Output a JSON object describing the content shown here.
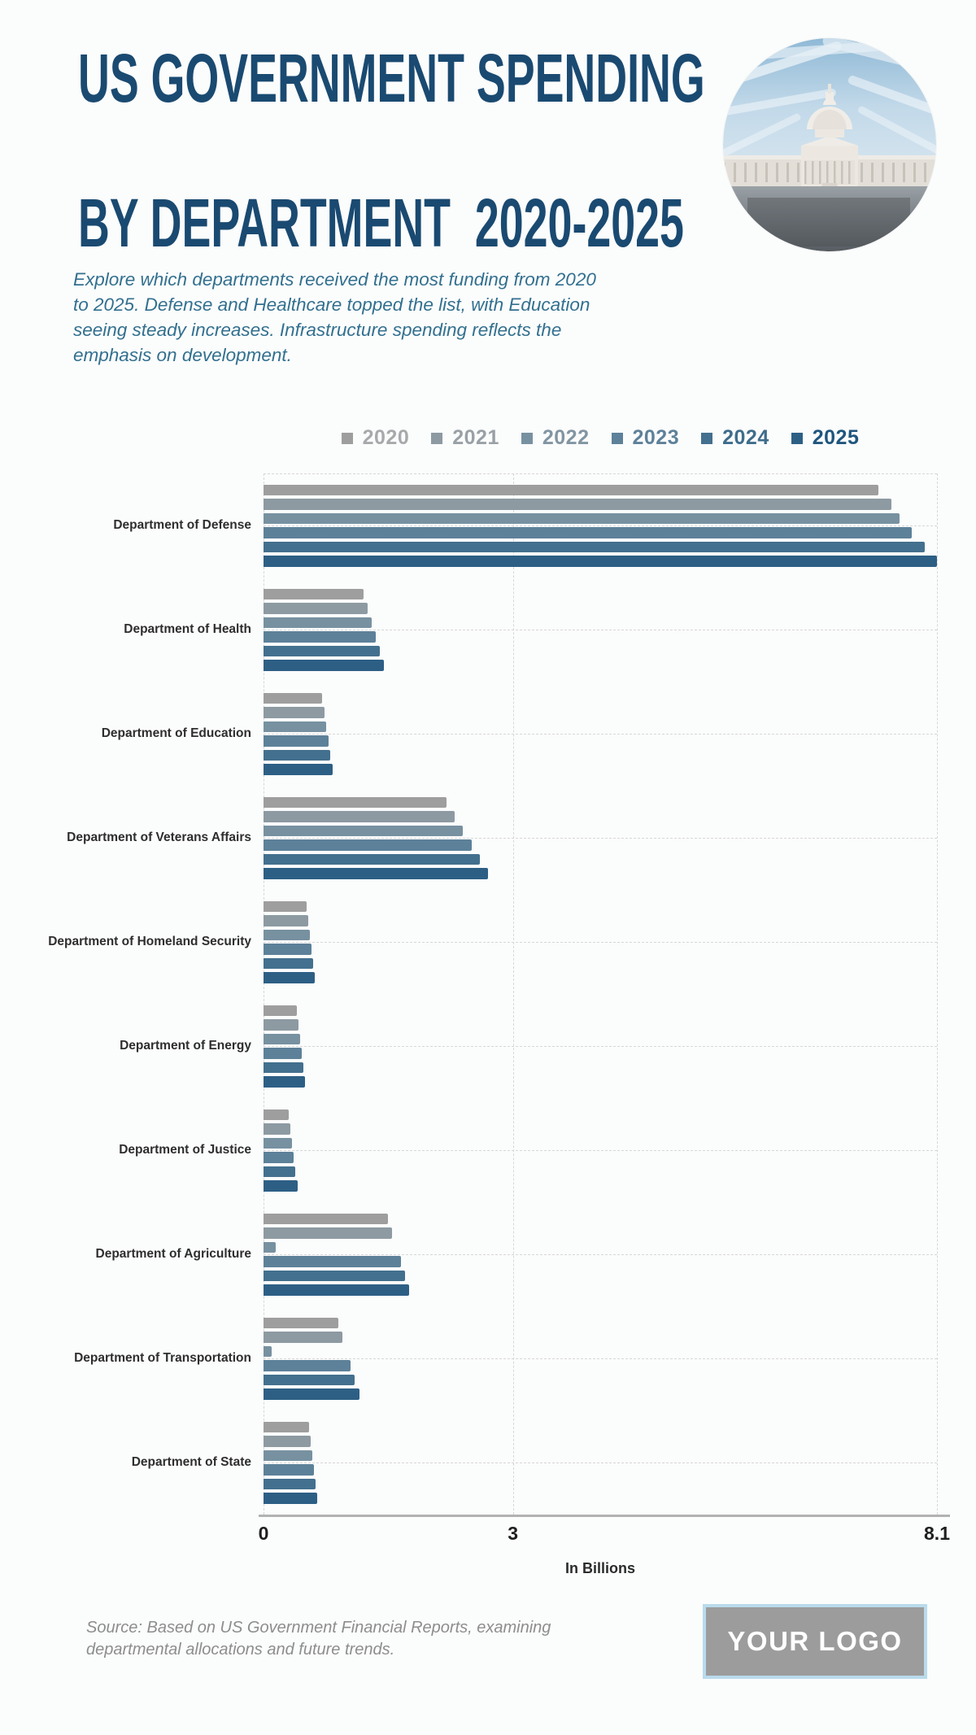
{
  "page": {
    "title_line1": "US GOVERNMENT SPENDING",
    "title_line2": "BY DEPARTMENT  2020-2025",
    "intro_lines": [
      "Explore which departments received the most funding from 2020",
      "to 2025. Defense and Healthcare topped the list, with Education",
      "seeing steady increases. Infrastructure spending reflects the",
      "emphasis on development."
    ],
    "source_lines": [
      "Source: Based on US Government Financial Reports, examining",
      "departmental allocations and future trends."
    ],
    "logo_text": "YOUR LOGO",
    "hero_image": "us-capitol-building-photo"
  },
  "colors": {
    "title_navy": "#1a4a71",
    "intro_blue": "#32708f",
    "axis_line": "#b2b2b2",
    "gridline": "#d7d7d7",
    "logo_border_blue": "#b9dbec",
    "logo_gray": "#9c9c9c"
  },
  "chart_data": {
    "type": "bar",
    "orientation": "horizontal",
    "title": "",
    "xlabel": "In Billions",
    "ylabel": "",
    "xlim": [
      0,
      8.1
    ],
    "x_ticks": [
      "0",
      "3",
      "8.1"
    ],
    "x_tick_values": [
      0,
      3,
      8.1
    ],
    "grid": true,
    "legend_position": "top",
    "categories": [
      "Department of Defense",
      "Department of Health",
      "Department of Education",
      "Department of Veterans Affairs",
      "Department of Homeland Security",
      "Department of Energy",
      "Department of Justice",
      "Department of Agriculture",
      "Department of Transportation",
      "Department of State"
    ],
    "series": [
      {
        "name": "2020",
        "color": "#9e9e9e",
        "legend_text_color": "#a7a9ab",
        "values": [
          7.4,
          1.2,
          0.7,
          2.2,
          0.52,
          0.4,
          0.3,
          1.5,
          0.9,
          0.55
        ]
      },
      {
        "name": "2021",
        "color": "#8d9aa2",
        "legend_text_color": "#99a1a6",
        "values": [
          7.55,
          1.25,
          0.73,
          2.3,
          0.54,
          0.42,
          0.32,
          1.55,
          0.95,
          0.57
        ]
      },
      {
        "name": "2022",
        "color": "#7791a1",
        "legend_text_color": "#8295a2",
        "values": [
          7.65,
          1.3,
          0.75,
          2.4,
          0.56,
          0.44,
          0.34,
          0.15,
          0.1,
          0.59
        ]
      },
      {
        "name": "2023",
        "color": "#5d8199",
        "legend_text_color": "#5e8199",
        "values": [
          7.8,
          1.35,
          0.78,
          2.5,
          0.58,
          0.46,
          0.36,
          1.65,
          1.05,
          0.61
        ]
      },
      {
        "name": "2024",
        "color": "#43708e",
        "legend_text_color": "#3e6d8c",
        "values": [
          7.95,
          1.4,
          0.8,
          2.6,
          0.6,
          0.48,
          0.38,
          1.7,
          1.1,
          0.63
        ]
      },
      {
        "name": "2025",
        "color": "#2d5f85",
        "legend_text_color": "#1f567e",
        "values": [
          8.1,
          1.45,
          0.83,
          2.7,
          0.62,
          0.5,
          0.41,
          1.75,
          1.15,
          0.65
        ]
      }
    ]
  }
}
